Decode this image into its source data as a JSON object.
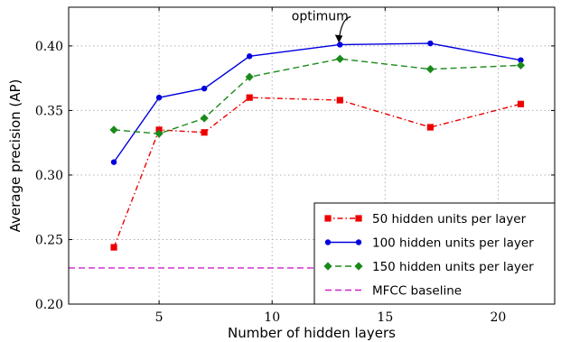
{
  "chart_data": {
    "type": "line",
    "xlabel": "Number of hidden layers",
    "ylabel": "Average precision (AP)",
    "xlim": [
      1,
      22.5
    ],
    "ylim": [
      0.2,
      0.43
    ],
    "x_ticks": [
      5,
      10,
      15,
      20
    ],
    "x_tick_labels": [
      "5",
      "10",
      "15",
      "20"
    ],
    "y_ticks": [
      0.2,
      0.25,
      0.3,
      0.35,
      0.4
    ],
    "y_tick_labels": [
      "0.20",
      "0.25",
      "0.30",
      "0.35",
      "0.40"
    ],
    "grid": true,
    "legend_position": "bottom-right",
    "series": [
      {
        "name": "50 hidden units per layer",
        "x": [
          3,
          5,
          7,
          9,
          13,
          17,
          21
        ],
        "y": [
          0.244,
          0.335,
          0.333,
          0.36,
          0.358,
          0.337,
          0.355
        ],
        "color": "#ee0000",
        "line_style": "dashdot",
        "marker": "square"
      },
      {
        "name": "100 hidden units per layer",
        "x": [
          3,
          5,
          7,
          9,
          13,
          17,
          21
        ],
        "y": [
          0.31,
          0.36,
          0.367,
          0.392,
          0.401,
          0.402,
          0.389
        ],
        "color": "#0000dd",
        "line_style": "solid",
        "marker": "circle"
      },
      {
        "name": "150 hidden units per layer",
        "x": [
          3,
          5,
          7,
          9,
          13,
          17,
          21
        ],
        "y": [
          0.335,
          0.332,
          0.344,
          0.376,
          0.39,
          0.382,
          0.385
        ],
        "color": "#1a8a1a",
        "line_style": "dashed",
        "marker": "diamond"
      },
      {
        "name": "MFCC baseline",
        "y_constant": 0.228,
        "color": "#cc22cc",
        "line_style": "dashed",
        "marker": "none"
      }
    ],
    "annotations": [
      {
        "text": "optimum",
        "x": 13,
        "y": 0.401
      }
    ]
  }
}
